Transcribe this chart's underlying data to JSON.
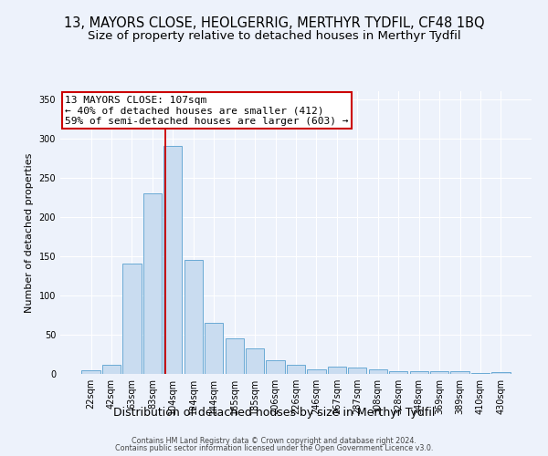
{
  "title_line1": "13, MAYORS CLOSE, HEOLGERRIG, MERTHYR TYDFIL, CF48 1BQ",
  "title_line2": "Size of property relative to detached houses in Merthyr Tydfil",
  "xlabel": "Distribution of detached houses by size in Merthyr Tydfil",
  "ylabel": "Number of detached properties",
  "footer_line1": "Contains HM Land Registry data © Crown copyright and database right 2024.",
  "footer_line2": "Contains public sector information licensed under the Open Government Licence v3.0.",
  "bar_labels": [
    "22sqm",
    "42sqm",
    "63sqm",
    "83sqm",
    "104sqm",
    "124sqm",
    "144sqm",
    "165sqm",
    "185sqm",
    "206sqm",
    "226sqm",
    "246sqm",
    "267sqm",
    "287sqm",
    "308sqm",
    "328sqm",
    "348sqm",
    "369sqm",
    "389sqm",
    "410sqm",
    "430sqm"
  ],
  "bar_values": [
    5,
    12,
    140,
    230,
    290,
    145,
    65,
    45,
    32,
    17,
    12,
    6,
    9,
    8,
    6,
    4,
    3,
    4,
    3,
    1,
    2
  ],
  "bar_color": "#c9dcf0",
  "bar_edge_color": "#6aaad4",
  "background_color": "#edf2fb",
  "plot_bg_color": "#edf2fb",
  "grid_color": "#ffffff",
  "marker_label": "13 MAYORS CLOSE: 107sqm",
  "annotation_line1": "← 40% of detached houses are smaller (412)",
  "annotation_line2": "59% of semi-detached houses are larger (603) →",
  "vline_color": "#cc0000",
  "annotation_box_facecolor": "#ffffff",
  "annotation_box_edgecolor": "#cc0000",
  "ylim": [
    0,
    360
  ],
  "yticks": [
    0,
    50,
    100,
    150,
    200,
    250,
    300,
    350
  ],
  "vline_bar_index": 4,
  "title1_fontsize": 10.5,
  "title2_fontsize": 9.5,
  "xlabel_fontsize": 9,
  "ylabel_fontsize": 8,
  "tick_fontsize": 7,
  "annot_fontsize": 8
}
